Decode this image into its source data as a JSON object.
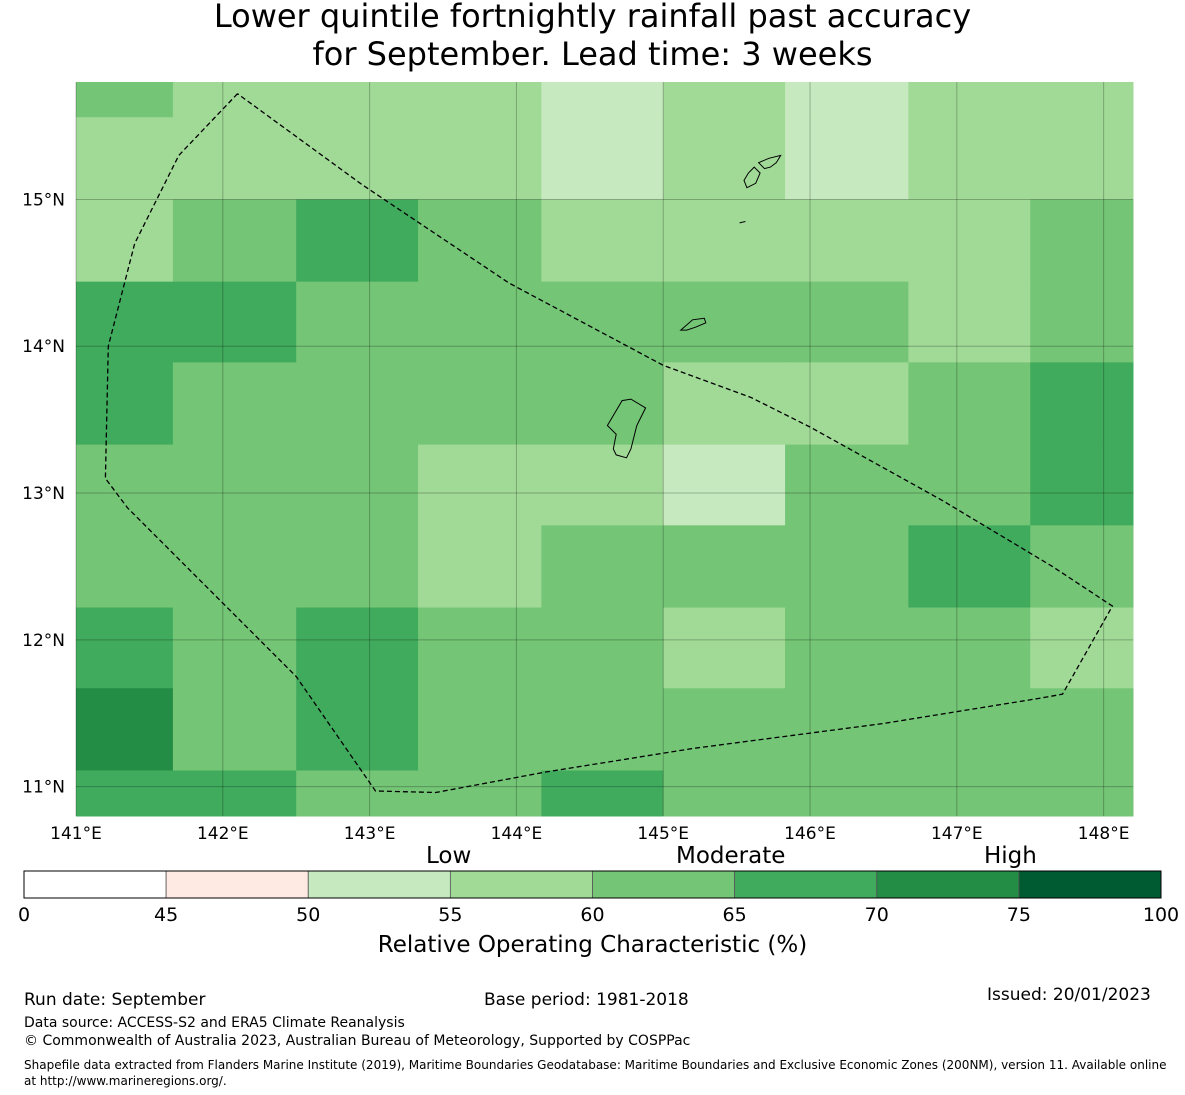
{
  "title": {
    "line1": "Lower quintile fortnightly rainfall past accuracy",
    "line2": "for September. Lead time: 3 weeks"
  },
  "map": {
    "x_ticks": [
      "141°E",
      "142°E",
      "143°E",
      "144°E",
      "145°E",
      "146°E",
      "147°E",
      "148°E"
    ],
    "y_ticks": [
      "15°N",
      "14°N",
      "13°N",
      "12°N",
      "11°N"
    ],
    "lon_range": [
      141.0,
      148.2
    ],
    "lat_range": [
      10.8,
      15.8
    ],
    "grid_lon_edges": [
      141.0,
      141.66,
      142.5,
      143.33,
      144.17,
      145.0,
      145.83,
      146.67,
      147.5,
      148.2
    ],
    "grid_lat_edges": [
      15.8,
      15.56,
      15.0,
      14.44,
      13.89,
      13.33,
      12.78,
      12.22,
      11.67,
      11.11,
      10.8
    ],
    "cells_roc": [
      [
        62,
        57,
        57,
        57,
        52,
        57,
        52,
        57,
        57
      ],
      [
        57,
        57,
        57,
        57,
        52,
        57,
        52,
        57,
        57
      ],
      [
        57,
        62,
        67,
        62,
        57,
        57,
        57,
        57,
        62
      ],
      [
        67,
        67,
        62,
        62,
        62,
        62,
        62,
        57,
        62
      ],
      [
        67,
        62,
        62,
        62,
        62,
        57,
        57,
        62,
        67
      ],
      [
        62,
        62,
        62,
        57,
        57,
        52,
        62,
        62,
        67
      ],
      [
        62,
        62,
        62,
        57,
        62,
        62,
        62,
        67,
        62
      ],
      [
        67,
        62,
        67,
        62,
        62,
        57,
        62,
        62,
        57
      ],
      [
        72,
        62,
        67,
        62,
        62,
        62,
        62,
        62,
        62
      ],
      [
        67,
        67,
        62,
        62,
        67,
        62,
        62,
        62,
        62
      ]
    ],
    "eez_boundary": [
      [
        142.1,
        15.72
      ],
      [
        141.7,
        15.3
      ],
      [
        141.4,
        14.7
      ],
      [
        141.22,
        14.0
      ],
      [
        141.2,
        13.1
      ],
      [
        141.35,
        12.9
      ],
      [
        141.95,
        12.3
      ],
      [
        142.5,
        11.75
      ],
      [
        143.04,
        10.97
      ],
      [
        143.45,
        10.96
      ],
      [
        144.2,
        11.1
      ],
      [
        145.2,
        11.26
      ],
      [
        146.5,
        11.43
      ],
      [
        147.55,
        11.6
      ],
      [
        147.72,
        11.63
      ],
      [
        148.06,
        12.23
      ],
      [
        147.65,
        12.5
      ],
      [
        146.9,
        12.95
      ],
      [
        146.0,
        13.45
      ],
      [
        145.6,
        13.65
      ],
      [
        145.0,
        13.87
      ],
      [
        143.95,
        14.43
      ],
      [
        142.95,
        15.1
      ],
      [
        142.1,
        15.72
      ]
    ],
    "islands": [
      [
        [
          144.62,
          13.46
        ],
        [
          144.72,
          13.63
        ],
        [
          144.78,
          13.64
        ],
        [
          144.88,
          13.58
        ],
        [
          144.82,
          13.46
        ],
        [
          144.78,
          13.3
        ],
        [
          144.75,
          13.24
        ],
        [
          144.68,
          13.26
        ],
        [
          144.66,
          13.3
        ],
        [
          144.68,
          13.4
        ],
        [
          144.62,
          13.46
        ]
      ],
      [
        [
          145.12,
          14.11
        ],
        [
          145.2,
          14.18
        ],
        [
          145.28,
          14.19
        ],
        [
          145.29,
          14.16
        ],
        [
          145.22,
          14.13
        ],
        [
          145.16,
          14.11
        ],
        [
          145.12,
          14.11
        ]
      ],
      [
        [
          145.57,
          15.08
        ],
        [
          145.63,
          15.11
        ],
        [
          145.66,
          15.18
        ],
        [
          145.62,
          15.22
        ],
        [
          145.58,
          15.18
        ],
        [
          145.55,
          15.13
        ],
        [
          145.57,
          15.08
        ]
      ],
      [
        [
          145.65,
          15.25
        ],
        [
          145.72,
          15.28
        ],
        [
          145.8,
          15.3
        ],
        [
          145.77,
          15.25
        ],
        [
          145.73,
          15.22
        ],
        [
          145.69,
          15.21
        ],
        [
          145.65,
          15.25
        ]
      ],
      [
        [
          145.52,
          14.84
        ],
        [
          145.56,
          14.85
        ],
        [
          145.52,
          14.84
        ]
      ]
    ]
  },
  "colorbar": {
    "category_labels": [
      "Low",
      "Moderate",
      "High"
    ],
    "tick_labels": [
      "0",
      "45",
      "50",
      "55",
      "60",
      "65",
      "70",
      "75",
      "100"
    ],
    "colors": [
      "#ffffff",
      "#feeae2",
      "#c6e9bf",
      "#a1da97",
      "#74c576",
      "#41ab5d",
      "#238c45",
      "#005a32"
    ],
    "xlabel": "Relative Operating Characteristic (%)"
  },
  "footer": {
    "run_date": "Run date: September",
    "base_period": "Base period: 1981-2018",
    "issued": "Issued: 20/01/2023",
    "data_source": "Data source: ACCESS-S2 and ERA5 Climate Reanalysis",
    "copyright": "© Commonwealth of Australia 2023, Australian Bureau of Meteorology, Supported by COSPPac",
    "shapefile_note": "Shapefile data extracted from Flanders Marine Institute (2019), Maritime Boundaries Geodatabase: Maritime Boundaries and Exclusive Economic Zones (200NM), version 11. Available online at http://www.marineregions.org/."
  }
}
